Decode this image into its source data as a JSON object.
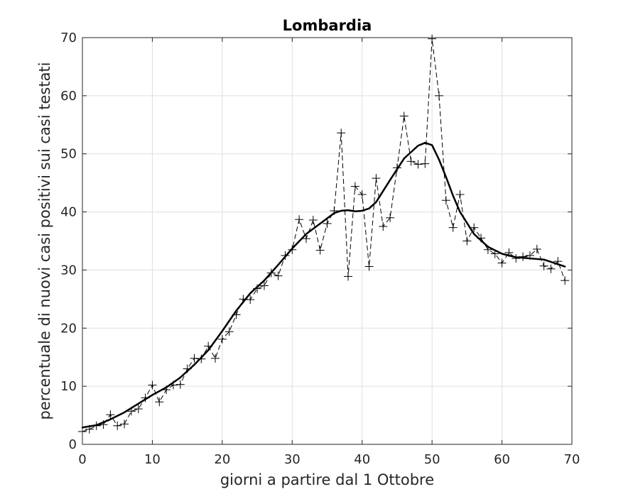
{
  "chart_data": {
    "type": "line",
    "title": "Lombardia",
    "xlabel": "giorni a partire dal 1 Ottobre",
    "ylabel": "percentuale di nuovi casi positivi sui casi testati",
    "xlim": [
      0,
      70
    ],
    "ylim": [
      0,
      70
    ],
    "xticks": [
      0,
      10,
      20,
      30,
      40,
      50,
      60,
      70
    ],
    "yticks": [
      0,
      10,
      20,
      30,
      40,
      50,
      60,
      70
    ],
    "grid": true,
    "legend": "none",
    "series": [
      {
        "style": "dashed-with-plus-markers",
        "color": "#000000",
        "x": [
          0,
          1,
          2,
          3,
          4,
          5,
          6,
          7,
          8,
          9,
          10,
          11,
          12,
          13,
          14,
          15,
          16,
          17,
          18,
          19,
          20,
          21,
          22,
          23,
          24,
          25,
          26,
          27,
          28,
          29,
          30,
          31,
          32,
          33,
          34,
          35,
          36,
          37,
          38,
          39,
          40,
          41,
          42,
          43,
          44,
          45,
          46,
          47,
          48,
          49,
          50,
          51,
          52,
          53,
          54,
          55,
          56,
          57,
          58,
          59,
          60,
          61,
          62,
          63,
          64,
          65,
          66,
          67,
          68,
          69
        ],
        "y": [
          2.2,
          2.6,
          3.2,
          3.4,
          5.1,
          3.2,
          3.5,
          5.7,
          6.1,
          8.0,
          10.2,
          7.3,
          9.4,
          10.2,
          10.3,
          13.0,
          14.8,
          14.7,
          16.9,
          14.8,
          18.1,
          19.4,
          22.3,
          25.0,
          24.9,
          26.8,
          27.3,
          29.5,
          29.0,
          32.5,
          33.5,
          38.7,
          35.4,
          38.6,
          33.4,
          38.0,
          40.2,
          53.6,
          28.9,
          44.4,
          43.0,
          30.6,
          45.8,
          37.5,
          39.0,
          47.6,
          56.5,
          48.7,
          48.2,
          48.3,
          69.8,
          60.0,
          42.0,
          37.3,
          43.0,
          35.0,
          37.3,
          35.5,
          33.5,
          32.8,
          31.2,
          33.0,
          32.0,
          32.3,
          32.5,
          33.6,
          30.7,
          30.2,
          31.5,
          28.2
        ]
      },
      {
        "style": "solid-thick",
        "color": "#000000",
        "x": [
          0,
          2,
          4,
          6,
          8,
          10,
          12,
          14,
          16,
          18,
          20,
          22,
          24,
          26,
          28,
          30,
          32,
          34,
          36,
          37,
          38,
          39,
          40,
          41,
          42,
          44,
          46,
          48,
          49,
          50,
          51,
          52,
          53,
          54,
          56,
          58,
          60,
          62,
          64,
          66,
          68,
          69
        ],
        "y": [
          2.9,
          3.3,
          4.3,
          5.5,
          7.0,
          8.5,
          9.8,
          11.5,
          13.7,
          16.2,
          19.5,
          23.0,
          26.0,
          28.2,
          30.9,
          33.7,
          36.2,
          38.0,
          39.8,
          40.2,
          40.3,
          40.1,
          40.2,
          40.6,
          41.7,
          45.5,
          49.2,
          51.4,
          51.9,
          51.5,
          49.0,
          46.0,
          42.8,
          40.0,
          36.2,
          34.0,
          32.8,
          32.2,
          32.0,
          31.8,
          31.0,
          30.6
        ]
      }
    ]
  }
}
